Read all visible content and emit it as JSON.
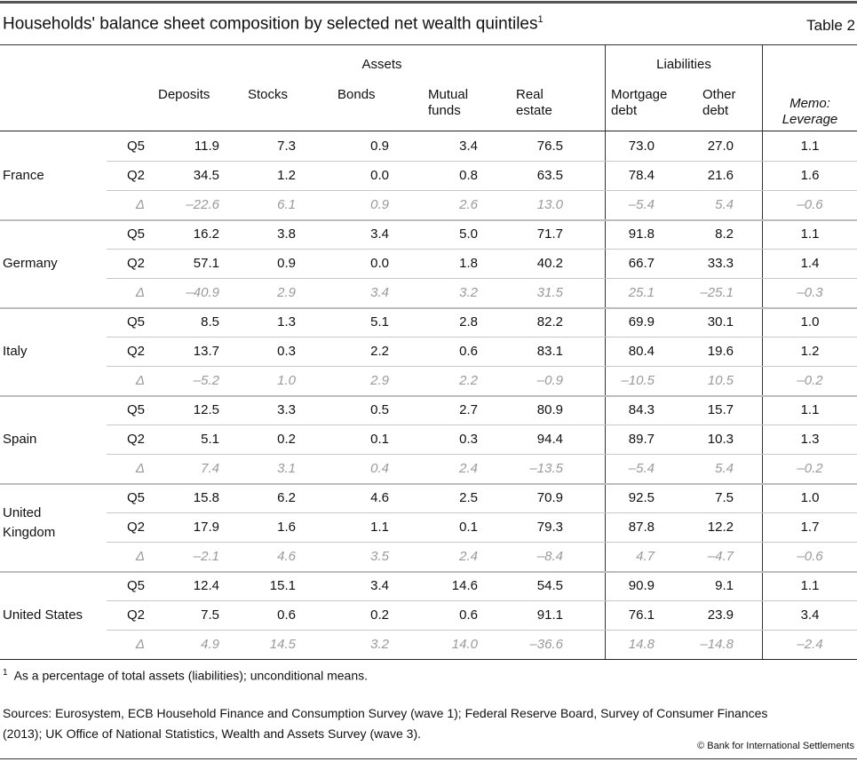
{
  "title": "Households' balance sheet composition by selected net wealth quintiles",
  "title_footnote_mark": "1",
  "table_label": "Table 2",
  "headers": {
    "assets": "Assets",
    "liabilities": "Liabilities",
    "columns": [
      {
        "line1": "Deposits",
        "line2": ""
      },
      {
        "line1": "Stocks",
        "line2": ""
      },
      {
        "line1": "Bonds",
        "line2": ""
      },
      {
        "line1": "Mutual",
        "line2": "funds"
      },
      {
        "line1": "Real",
        "line2": "estate"
      },
      {
        "line1": "Mortgage",
        "line2": "debt"
      },
      {
        "line1": "Other",
        "line2": "debt"
      }
    ],
    "memo_line1": "Memo:",
    "memo_line2": "Leverage"
  },
  "groups": [
    {
      "country": "France",
      "rows": [
        {
          "label": "Q5",
          "values": [
            "11.9",
            "7.3",
            "0.9",
            "3.4",
            "76.5",
            "73.0",
            "27.0",
            "1.1"
          ]
        },
        {
          "label": "Q2",
          "values": [
            "34.5",
            "1.2",
            "0.0",
            "0.8",
            "63.5",
            "78.4",
            "21.6",
            "1.6"
          ]
        },
        {
          "label": "Δ",
          "values": [
            "–22.6",
            "6.1",
            "0.9",
            "2.6",
            "13.0",
            "–5.4",
            "5.4",
            "–0.6"
          ]
        }
      ]
    },
    {
      "country": "Germany",
      "rows": [
        {
          "label": "Q5",
          "values": [
            "16.2",
            "3.8",
            "3.4",
            "5.0",
            "71.7",
            "91.8",
            "8.2",
            "1.1"
          ]
        },
        {
          "label": "Q2",
          "values": [
            "57.1",
            "0.9",
            "0.0",
            "1.8",
            "40.2",
            "66.7",
            "33.3",
            "1.4"
          ]
        },
        {
          "label": "Δ",
          "values": [
            "–40.9",
            "2.9",
            "3.4",
            "3.2",
            "31.5",
            "25.1",
            "–25.1",
            "–0.3"
          ]
        }
      ]
    },
    {
      "country": "Italy",
      "rows": [
        {
          "label": "Q5",
          "values": [
            "8.5",
            "1.3",
            "5.1",
            "2.8",
            "82.2",
            "69.9",
            "30.1",
            "1.0"
          ]
        },
        {
          "label": "Q2",
          "values": [
            "13.7",
            "0.3",
            "2.2",
            "0.6",
            "83.1",
            "80.4",
            "19.6",
            "1.2"
          ]
        },
        {
          "label": "Δ",
          "values": [
            "–5.2",
            "1.0",
            "2.9",
            "2.2",
            "–0.9",
            "–10.5",
            "10.5",
            "–0.2"
          ]
        }
      ]
    },
    {
      "country": "Spain",
      "rows": [
        {
          "label": "Q5",
          "values": [
            "12.5",
            "3.3",
            "0.5",
            "2.7",
            "80.9",
            "84.3",
            "15.7",
            "1.1"
          ]
        },
        {
          "label": "Q2",
          "values": [
            "5.1",
            "0.2",
            "0.1",
            "0.3",
            "94.4",
            "89.7",
            "10.3",
            "1.3"
          ]
        },
        {
          "label": "Δ",
          "values": [
            "7.4",
            "3.1",
            "0.4",
            "2.4",
            "–13.5",
            "–5.4",
            "5.4",
            "–0.2"
          ]
        }
      ]
    },
    {
      "country": "United Kingdom",
      "country_lines": [
        "United",
        "Kingdom"
      ],
      "rows": [
        {
          "label": "Q5",
          "values": [
            "15.8",
            "6.2",
            "4.6",
            "2.5",
            "70.9",
            "92.5",
            "7.5",
            "1.0"
          ]
        },
        {
          "label": "Q2",
          "values": [
            "17.9",
            "1.6",
            "1.1",
            "0.1",
            "79.3",
            "87.8",
            "12.2",
            "1.7"
          ]
        },
        {
          "label": "Δ",
          "values": [
            "–2.1",
            "4.6",
            "3.5",
            "2.4",
            "–8.4",
            "4.7",
            "–4.7",
            "–0.6"
          ]
        }
      ]
    },
    {
      "country": "United States",
      "rows": [
        {
          "label": "Q5",
          "values": [
            "12.4",
            "15.1",
            "3.4",
            "14.6",
            "54.5",
            "90.9",
            "9.1",
            "1.1"
          ]
        },
        {
          "label": "Q2",
          "values": [
            "7.5",
            "0.6",
            "0.2",
            "0.6",
            "91.1",
            "76.1",
            "23.9",
            "3.4"
          ]
        },
        {
          "label": "Δ",
          "values": [
            "4.9",
            "14.5",
            "3.2",
            "14.0",
            "–36.6",
            "14.8",
            "–14.8",
            "–2.4"
          ]
        }
      ]
    }
  ],
  "footnote": {
    "mark": "1",
    "text": "As a percentage of total assets (liabilities); unconditional means."
  },
  "sources": {
    "line1": "Sources: Eurosystem, ECB Household Finance and Consumption Survey (wave 1); Federal Reserve Board, Survey of Consumer Finances",
    "line2": "(2013); UK Office of National Statistics, Wealth and Assets Survey (wave 3)."
  },
  "copyright": "© Bank for International Settlements",
  "colors": {
    "text": "#111111",
    "delta_text": "#9a9a9a",
    "rule": "#333333",
    "light_rule": "#bdbdbd"
  }
}
